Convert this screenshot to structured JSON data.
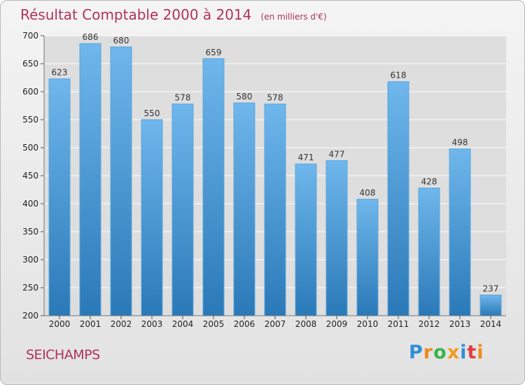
{
  "header": {
    "title": "Résultat Comptable 2000 à 2014",
    "unit": "(en milliers d'€)"
  },
  "footer": {
    "city": "SEICHAMPS",
    "logo": "Proxiti"
  },
  "colors": {
    "bar_top": "#6fb7ec",
    "bar_bottom": "#2a79b8",
    "gridline": "#ffffff",
    "title": "#b0335d",
    "background": "#e8e8e8"
  },
  "chart_data": {
    "type": "bar",
    "title": "Résultat Comptable 2000 à 2014",
    "xlabel": "",
    "ylabel": "",
    "categories": [
      "2000",
      "2001",
      "2002",
      "2003",
      "2004",
      "2005",
      "2006",
      "2007",
      "2008",
      "2009",
      "2010",
      "2011",
      "2012",
      "2013",
      "2014"
    ],
    "values": [
      623,
      686,
      680,
      550,
      578,
      659,
      580,
      578,
      471,
      477,
      408,
      618,
      428,
      498,
      237
    ],
    "ylim": [
      200,
      700
    ],
    "yticks": [
      200,
      250,
      300,
      350,
      400,
      450,
      500,
      550,
      600,
      650,
      700
    ],
    "grid": true,
    "data_labels": true
  }
}
